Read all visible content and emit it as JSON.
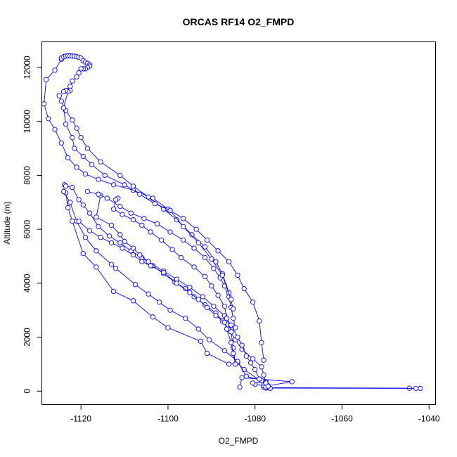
{
  "chart_data": {
    "type": "line",
    "title": "ORCAS RF14 O2_FMPD",
    "xlabel": "O2_FMPD",
    "ylabel": "Altitude (m)",
    "xlim": [
      -1129,
      -1038.5
    ],
    "ylim": [
      -500,
      12950
    ],
    "xticks": [
      -1120,
      -1100,
      -1080,
      -1060,
      -1040
    ],
    "yticks": [
      0,
      2000,
      4000,
      6000,
      8000,
      10000,
      12000
    ],
    "xtick_labels": [
      "-1120",
      "-1100",
      "-1080",
      "-1060",
      "-1040"
    ],
    "ytick_labels": [
      "0",
      "2000",
      "4000",
      "6000",
      "8000",
      "10000",
      "12000"
    ],
    "markers": "open-circle",
    "grid": false,
    "colors": {
      "series": "#0000ff",
      "axes": "#000000"
    },
    "series": [
      {
        "x": [
          -1042.0,
          -1044.5,
          -1077.0,
          -1078.0,
          -1078.0,
          -1080.0,
          -1080.5,
          -1077.5,
          -1077.0,
          -1071.5,
          -1083.0,
          -1083.5
        ],
        "y": [
          100,
          110,
          130,
          150,
          200,
          250,
          300,
          350,
          200,
          350,
          500,
          150
        ]
      },
      {
        "x": [
          -1043.0,
          -1077.5,
          -1078.0,
          -1082.5,
          -1084.0,
          -1086.0,
          -1091.0,
          -1092.5,
          -1100.0,
          -1103.5,
          -1108.0,
          -1112.5,
          -1116.5,
          -1119.5,
          -1122.0,
          -1123.0,
          -1123.5
        ],
        "y": [
          100,
          110,
          300,
          800,
          1050,
          1000,
          1400,
          1850,
          2350,
          2750,
          3350,
          3700,
          4600,
          5100,
          6300,
          6800,
          7350
        ]
      },
      {
        "x": [
          -1123.8,
          -1124.0,
          -1122.5,
          -1121.0,
          -1119.0,
          -1116.5,
          -1113.0,
          -1112.0,
          -1107.5,
          -1104.5,
          -1102.0,
          -1099.5,
          -1096.0,
          -1093.0,
          -1090.5,
          -1087.0,
          -1084.0,
          -1082.0,
          -1078.5,
          -1077.5,
          -1076.5
        ],
        "y": [
          7650,
          7400,
          7000,
          6300,
          5700,
          5200,
          4700,
          4550,
          3950,
          3600,
          3300,
          3000,
          2700,
          2300,
          1900,
          1500,
          1100,
          550,
          400,
          150,
          100
        ]
      },
      {
        "x": [
          -1123.5,
          -1122.0,
          -1120.5,
          -1119.5,
          -1118.0,
          -1116.0,
          -1113.5,
          -1111.0,
          -1108.5,
          -1106.0,
          -1103.5,
          -1101.0,
          -1098.5,
          -1096.0,
          -1094.0,
          -1091.5,
          -1089.0,
          -1087.5,
          -1086.0,
          -1084.5,
          -1083.0,
          -1080.5,
          -1078.5,
          -1078.0,
          -1077.5,
          -1077.0
        ],
        "y": [
          7600,
          7550,
          7100,
          6900,
          6600,
          6100,
          5750,
          5500,
          5200,
          4950,
          4650,
          4350,
          4050,
          3800,
          3500,
          3200,
          2900,
          2600,
          2300,
          1900,
          1550,
          1200,
          900,
          600,
          300,
          180
        ]
      },
      {
        "x": [
          -1118.5,
          -1116.0,
          -1115.5,
          -1116.5,
          -1113.0,
          -1111.0,
          -1110.0,
          -1108.0,
          -1106.5,
          -1104.5,
          -1101.0,
          -1098.0,
          -1095.0,
          -1092.0,
          -1089.5,
          -1087.0,
          -1085.5,
          -1084.0,
          -1083.0,
          -1082.0,
          -1081.0,
          -1080.0,
          -1079.0
        ],
        "y": [
          7400,
          7300,
          7250,
          6450,
          6150,
          5800,
          5550,
          5300,
          5050,
          4800,
          4450,
          4150,
          3850,
          3500,
          3150,
          2800,
          2450,
          2000,
          1700,
          1300,
          1050,
          800,
          450
        ]
      },
      {
        "x": [
          -1111.5,
          -1112.0,
          -1112.5,
          -1110.5,
          -1108.0,
          -1106.0,
          -1104.0,
          -1101.5,
          -1099.0,
          -1097.0,
          -1094.0,
          -1091.5,
          -1090.0,
          -1088.5,
          -1087.0,
          -1086.5,
          -1085.5,
          -1085.0,
          -1084.5
        ],
        "y": [
          7150,
          7100,
          6750,
          6550,
          6350,
          6150,
          5900,
          5600,
          5250,
          4950,
          4600,
          4250,
          3900,
          3550,
          3150,
          2700,
          2200,
          1600,
          1000
        ]
      },
      {
        "x": [
          -1120.5,
          -1118.0,
          -1115.5,
          -1113.0,
          -1110.5,
          -1108.0,
          -1106.0,
          -1104.0,
          -1101.0,
          -1098.0,
          -1095.0,
          -1093.0,
          -1091.0,
          -1089.0,
          -1087.0,
          -1086.5,
          -1085.5,
          -1085.0,
          -1084.5
        ],
        "y": [
          6300,
          5950,
          5700,
          5500,
          5300,
          5050,
          4800,
          4650,
          4400,
          4000,
          3650,
          3400,
          3100,
          2800,
          2550,
          2300,
          1800,
          1400,
          1000
        ]
      },
      {
        "x": [
          -1116.0,
          -1114.0,
          -1111.0,
          -1108.5,
          -1105.5,
          -1102.5,
          -1099.5,
          -1096.5,
          -1094.0,
          -1091.5,
          -1089.5,
          -1088.0,
          -1087.0,
          -1086.0,
          -1085.5,
          -1085.0,
          -1084.5
        ],
        "y": [
          7300,
          7150,
          6850,
          6600,
          6400,
          6200,
          5900,
          5600,
          5300,
          4950,
          4550,
          4200,
          3900,
          3500,
          3100,
          2700,
          2350
        ]
      },
      {
        "x": [
          -1124.5,
          -1126.0,
          -1128.0,
          -1128.5,
          -1127.5,
          -1126.0,
          -1124.5,
          -1123.0,
          -1121.0,
          -1119.0,
          -1116.0,
          -1112.5,
          -1108.0,
          -1103.5,
          -1100.0,
          -1096.5,
          -1093.5,
          -1091.0,
          -1088.5,
          -1086.0,
          -1084.0,
          -1082.5,
          -1080.5,
          -1079.0,
          -1078.5,
          -1078.0
        ],
        "y": [
          12300,
          11900,
          11550,
          10650,
          10100,
          9700,
          9200,
          8650,
          8300,
          8050,
          7850,
          7650,
          7450,
          7150,
          6750,
          6400,
          6000,
          5600,
          5200,
          4800,
          4300,
          3800,
          3300,
          2600,
          1800,
          1150
        ]
      },
      {
        "x": [
          -1125.0,
          -1124.5,
          -1123.5,
          -1122.0,
          -1121.0,
          -1120.0,
          -1118.5,
          -1115.5,
          -1111.0,
          -1108.0,
          -1104.5,
          -1101.0,
          -1098.0,
          -1094.5,
          -1091.5,
          -1089.0,
          -1087.5,
          -1086.0,
          -1085.0
        ],
        "y": [
          10950,
          10750,
          10400,
          10050,
          9750,
          9400,
          9000,
          8500,
          8000,
          7600,
          7200,
          6750,
          6350,
          5800,
          5350,
          4800,
          4350,
          3650,
          3050
        ]
      },
      {
        "x": [
          -1122.5,
          -1123.0,
          -1124.0,
          -1123.5,
          -1122.0,
          -1121.5,
          -1119.5,
          -1117.5,
          -1114.5,
          -1110.0,
          -1106.5,
          -1103.0,
          -1099.5,
          -1096.5,
          -1093.0,
          -1090.0,
          -1087.5,
          -1085.5
        ],
        "y": [
          11150,
          11100,
          10500,
          9900,
          9400,
          9000,
          8700,
          8400,
          8000,
          7650,
          7300,
          6950,
          6700,
          6100,
          5500,
          4900,
          4300,
          3400
        ]
      },
      {
        "x": [
          -1124.5,
          -1124.0,
          -1123.5,
          -1123.0,
          -1122.5,
          -1122.0,
          -1121.5,
          -1121.0,
          -1120.5,
          -1120.0,
          -1119.5,
          -1119.0,
          -1118.5,
          -1118.0,
          -1118.0,
          -1118.5,
          -1119.0,
          -1119.5,
          -1120.0,
          -1120.5,
          -1121.0,
          -1122.0,
          -1122.5,
          -1123.5,
          -1124.0
        ],
        "y": [
          12350,
          12400,
          12420,
          12430,
          12430,
          12420,
          12420,
          12400,
          12380,
          12350,
          12250,
          12200,
          12150,
          12100,
          12050,
          12000,
          11950,
          11950,
          11950,
          11800,
          11650,
          11500,
          11300,
          11150,
          11100
        ]
      }
    ]
  }
}
